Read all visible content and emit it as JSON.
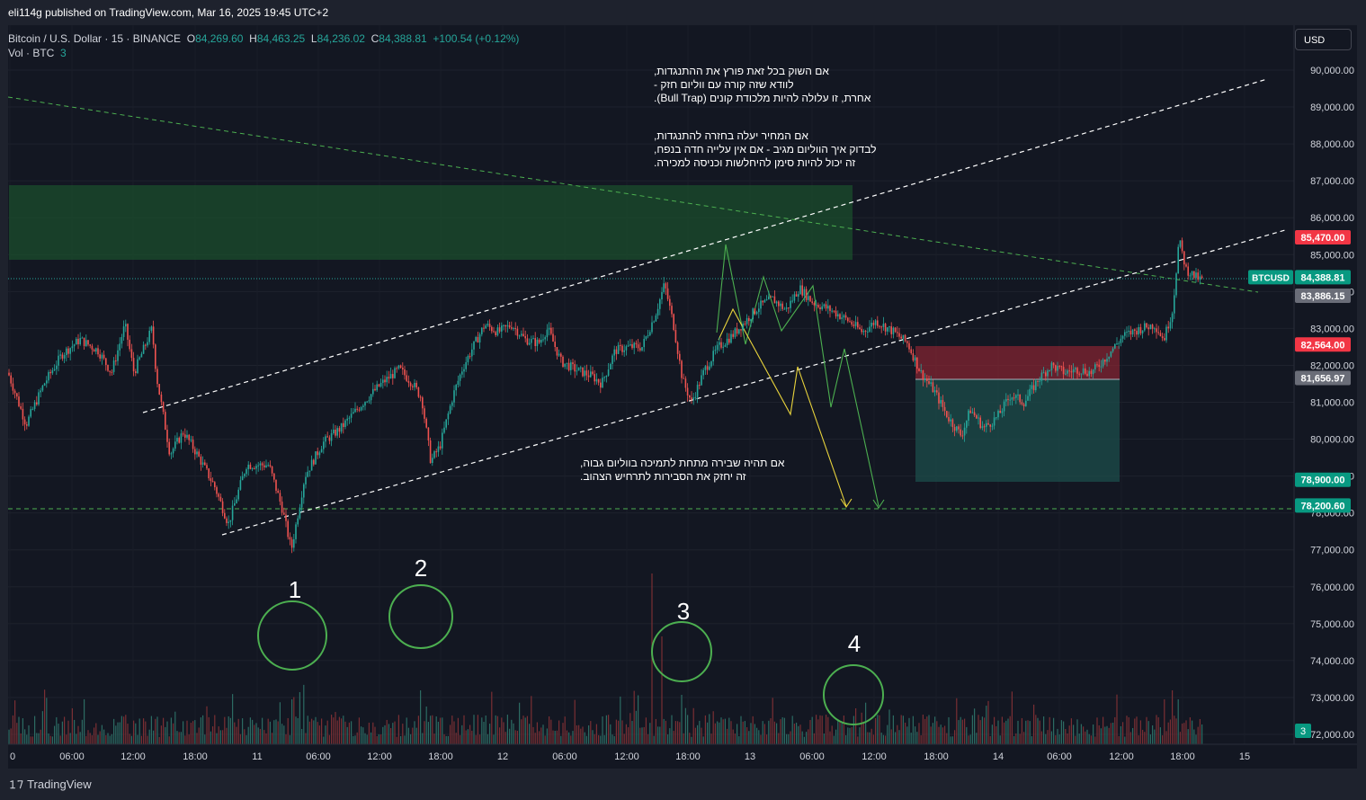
{
  "publish": {
    "text": "eli114g published on TradingView.com, Mar 16, 2025 19:45 UTC+2"
  },
  "legend": {
    "symbol": "Bitcoin / U.S. Dollar · 15 · BINANCE",
    "o_label": "O",
    "o": "84,269.60",
    "h_label": "H",
    "h": "84,463.25",
    "l_label": "L",
    "l": "84,236.02",
    "c_label": "C",
    "c": "84,388.81",
    "change": "+100.54 (+0.12%)",
    "vol_label": "Vol · BTC",
    "vol": "3"
  },
  "currency": "USD",
  "footer": {
    "brand": "TradingView"
  },
  "colors": {
    "bg": "#131722",
    "up": "#26a69a",
    "down": "#ef5350",
    "grid": "#2a2e39"
  },
  "notes": {
    "top1": [
      "אם השוק בכל זאת פורץ את ההתנגדות,",
      "לוודא שזה קורה עם ווליום חזק -",
      "אחרת, זו עלולה להיות מלכודת קונים (Bull Trap)."
    ],
    "top2": [
      "אם המחיר יעלה בחזרה להתנגדות,",
      "לבדוק איך הווליום מגיב - אם אין עלייה חדה בנפח,",
      "זה יכול להיות סימן להיחלשות וכניסה למכירה."
    ],
    "bottom": [
      "אם תהיה שבירה מתחת לתמיכה בווליום גבוה,",
      "זה יחזק את הסבירות לתרחיש הצהוב."
    ]
  },
  "markers": [
    "1",
    "2",
    "3",
    "4"
  ],
  "chart_data": {
    "type": "candlestick",
    "symbol": "BTCUSD",
    "interval": "15",
    "exchange": "BINANCE",
    "y_axis": {
      "min": 72000,
      "max": 90500,
      "ticks": [
        "90,000.00",
        "89,000.00",
        "88,000.00",
        "87,000.00",
        "86,000.00",
        "85,000.00",
        "84,000.00",
        "83,000.00",
        "82,000.00",
        "81,000.00",
        "80,000.00",
        "79,000.00",
        "78,000.00",
        "77,000.00",
        "76,000.00",
        "75,000.00",
        "74,000.00",
        "73,000.00",
        "72,000.00"
      ]
    },
    "x_axis": {
      "ticks": [
        "0",
        "06:00",
        "12:00",
        "18:00",
        "11",
        "06:00",
        "12:00",
        "18:00",
        "12",
        "06:00",
        "12:00",
        "18:00",
        "13",
        "06:00",
        "12:00",
        "18:00",
        "14",
        "06:00",
        "12:00",
        "18:00",
        "15"
      ]
    },
    "price_labels": [
      {
        "label": "",
        "value": "85,470.00",
        "color": "#f23645"
      },
      {
        "label": "BTCUSD",
        "value": "84,388.81",
        "color": "#089981"
      },
      {
        "label": "",
        "value": "83,886.15",
        "color": "#6a6d78"
      },
      {
        "label": "",
        "value": "82,564.00",
        "color": "#f23645"
      },
      {
        "label": "",
        "value": "81,656.97",
        "color": "#6a6d78"
      },
      {
        "label": "",
        "value": "78,900.00",
        "color": "#089981"
      },
      {
        "label": "",
        "value": "78,200.60",
        "color": "#089981"
      }
    ],
    "volume_label": "3",
    "price_path": [
      [
        0,
        81800
      ],
      [
        20,
        80400
      ],
      [
        40,
        81500
      ],
      [
        60,
        82300
      ],
      [
        80,
        82700
      ],
      [
        100,
        82400
      ],
      [
        115,
        81800
      ],
      [
        130,
        83100
      ],
      [
        140,
        81800
      ],
      [
        160,
        83000
      ],
      [
        165,
        81700
      ],
      [
        180,
        79600
      ],
      [
        195,
        80200
      ],
      [
        210,
        79600
      ],
      [
        230,
        78700
      ],
      [
        245,
        77700
      ],
      [
        265,
        79300
      ],
      [
        290,
        79300
      ],
      [
        305,
        78100
      ],
      [
        315,
        77000
      ],
      [
        330,
        79000
      ],
      [
        350,
        79900
      ],
      [
        370,
        80300
      ],
      [
        395,
        81000
      ],
      [
        415,
        81500
      ],
      [
        435,
        81900
      ],
      [
        450,
        81500
      ],
      [
        460,
        81100
      ],
      [
        470,
        79400
      ],
      [
        480,
        79800
      ],
      [
        495,
        81200
      ],
      [
        505,
        81900
      ],
      [
        515,
        82400
      ],
      [
        530,
        83100
      ],
      [
        545,
        82900
      ],
      [
        560,
        83100
      ],
      [
        575,
        82700
      ],
      [
        590,
        82600
      ],
      [
        600,
        83000
      ],
      [
        615,
        82100
      ],
      [
        630,
        81900
      ],
      [
        650,
        81700
      ],
      [
        660,
        81500
      ],
      [
        675,
        82400
      ],
      [
        690,
        82500
      ],
      [
        705,
        82500
      ],
      [
        720,
        83400
      ],
      [
        730,
        84200
      ],
      [
        740,
        83100
      ],
      [
        750,
        81600
      ],
      [
        760,
        81000
      ],
      [
        775,
        81900
      ],
      [
        790,
        82500
      ],
      [
        805,
        82800
      ],
      [
        820,
        83200
      ],
      [
        835,
        83600
      ],
      [
        850,
        83800
      ],
      [
        865,
        83500
      ],
      [
        880,
        84100
      ],
      [
        895,
        83700
      ],
      [
        915,
        83500
      ],
      [
        935,
        83200
      ],
      [
        950,
        82900
      ],
      [
        965,
        83200
      ],
      [
        985,
        82900
      ],
      [
        1000,
        82600
      ],
      [
        1015,
        81800
      ],
      [
        1030,
        81300
      ],
      [
        1045,
        80600
      ],
      [
        1060,
        80100
      ],
      [
        1070,
        80800
      ],
      [
        1085,
        80300
      ],
      [
        1100,
        80600
      ],
      [
        1115,
        81200
      ],
      [
        1130,
        81000
      ],
      [
        1145,
        81600
      ],
      [
        1160,
        82000
      ],
      [
        1175,
        81800
      ],
      [
        1190,
        81900
      ],
      [
        1205,
        81800
      ],
      [
        1220,
        82200
      ],
      [
        1240,
        82800
      ],
      [
        1260,
        83000
      ],
      [
        1275,
        83100
      ],
      [
        1285,
        82700
      ],
      [
        1295,
        83500
      ],
      [
        1302,
        85400
      ],
      [
        1310,
        84600
      ],
      [
        1320,
        84400
      ],
      [
        1328,
        84300
      ]
    ],
    "levels": {
      "resistance_zone": [
        84800,
        86900
      ],
      "support": 78200.6,
      "short_entry": 82564,
      "short_stop_zone": [
        81656.97,
        82564
      ],
      "short_target": 78900
    }
  }
}
